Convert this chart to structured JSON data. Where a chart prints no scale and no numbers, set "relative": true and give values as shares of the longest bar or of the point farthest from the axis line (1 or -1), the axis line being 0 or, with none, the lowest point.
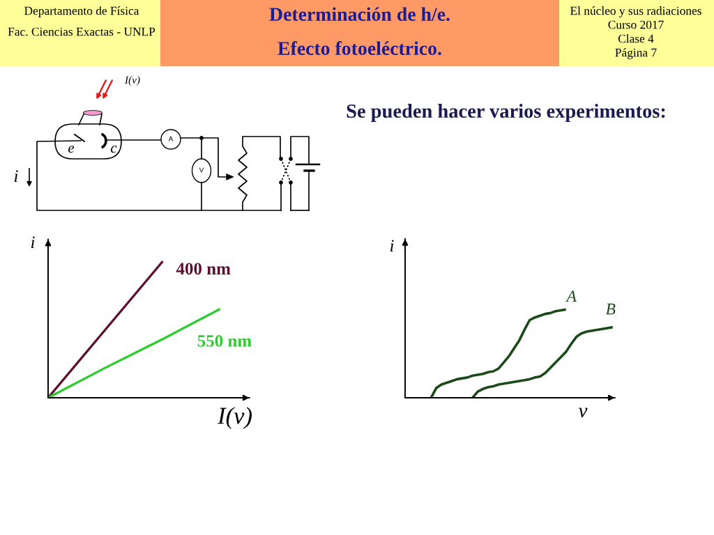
{
  "chart_data": [
    {
      "type": "other",
      "title": "Determinación de h/e.",
      "subtitle": "Efecto fotoeléctrico.",
      "annotations": [
        "Departamento de Física",
        "Fac. Ciencias Exactas - UNLP",
        "El núcleo y sus radiaciones",
        "Curso 2017",
        "Clase 4",
        "Página 7",
        "Se pueden hacer varios experimentos:",
        "I(ν)",
        "e",
        "c",
        "A",
        "V",
        "i"
      ]
    },
    {
      "type": "line",
      "relative": true,
      "xlabel": "I(ν)",
      "ylabel": "i",
      "categories": [
        null,
        null,
        null,
        null
      ],
      "series": [
        {
          "name": "400 nm",
          "color": "#5c1030",
          "values": [
            0,
            0.5,
            1,
            null
          ]
        },
        {
          "name": "550 nm",
          "color": "#2ecc2e",
          "values": [
            0,
            0.22,
            0.43,
            0.65
          ]
        }
      ]
    },
    {
      "type": "line",
      "relative": true,
      "xlabel": "ν",
      "ylabel": "i",
      "categories": [
        null,
        null,
        null,
        null,
        null,
        null,
        null,
        null,
        null,
        null,
        null,
        null,
        null,
        null,
        null,
        null,
        null,
        null,
        null,
        null,
        null,
        null,
        null,
        null,
        null,
        null,
        null,
        null,
        null,
        null,
        null,
        null,
        null,
        null,
        null,
        null,
        null,
        null,
        null,
        null,
        null
      ],
      "series": [
        {
          "name": "A",
          "color": "#1a4a1a",
          "values": [
            null,
            null,
            null,
            null,
            null,
            0,
            0.11,
            0.15,
            0.17,
            0.19,
            0.21,
            0.22,
            0.23,
            0.25,
            0.26,
            0.27,
            0.29,
            0.3,
            0.33,
            0.4,
            0.47,
            0.56,
            0.65,
            0.77,
            0.88,
            0.91,
            0.93,
            0.95,
            0.96,
            0.98,
            0.99,
            1,
            null,
            null,
            null,
            null,
            null,
            null,
            null,
            null,
            null
          ]
        },
        {
          "name": "B",
          "color": "#1a4a1a",
          "values": [
            null,
            null,
            null,
            null,
            null,
            null,
            null,
            null,
            null,
            null,
            null,
            null,
            null,
            0,
            0.07,
            0.1,
            0.12,
            0.13,
            0.15,
            0.16,
            0.17,
            0.18,
            0.19,
            0.2,
            0.21,
            0.23,
            0.24,
            0.28,
            0.34,
            0.4,
            0.46,
            0.52,
            0.61,
            0.69,
            0.73,
            0.75,
            0.76,
            0.77,
            0.78,
            0.79,
            0.8
          ]
        }
      ]
    }
  ]
}
